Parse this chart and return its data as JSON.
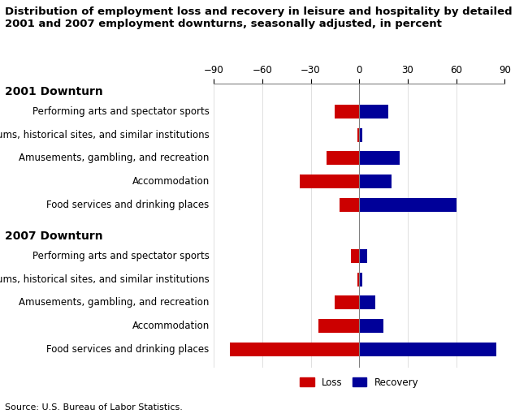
{
  "title_line1": "Distribution of employment loss and recovery in leisure and hospitality by detailed industry,",
  "title_line2": "2001 and 2007 employment downturns, seasonally adjusted, in percent",
  "source": "Source: U.S. Bureau of Labor Statistics.",
  "categories": [
    "Performing arts and spectator sports",
    "Museums, historical sites, and similar institutions",
    "Amusements, gambling, and recreation",
    "Accommodation",
    "Food services and drinking places"
  ],
  "downturn_2001": {
    "loss": [
      -15,
      -1,
      -20,
      -37,
      -12
    ],
    "recovery": [
      18,
      2,
      25,
      20,
      60
    ]
  },
  "downturn_2007": {
    "loss": [
      -5,
      -1,
      -15,
      -25,
      -80
    ],
    "recovery": [
      5,
      2,
      10,
      15,
      85
    ]
  },
  "xlim": [
    -90,
    90
  ],
  "xticks": [
    -90,
    -60,
    -30,
    0,
    30,
    60,
    90
  ],
  "loss_color": "#cc0000",
  "recovery_color": "#000099",
  "label_color": "#000000",
  "section_color": "#000000",
  "bar_height": 0.6,
  "title_fontsize": 9.5,
  "label_fontsize": 8.5,
  "section_fontsize": 10,
  "tick_fontsize": 8.5
}
